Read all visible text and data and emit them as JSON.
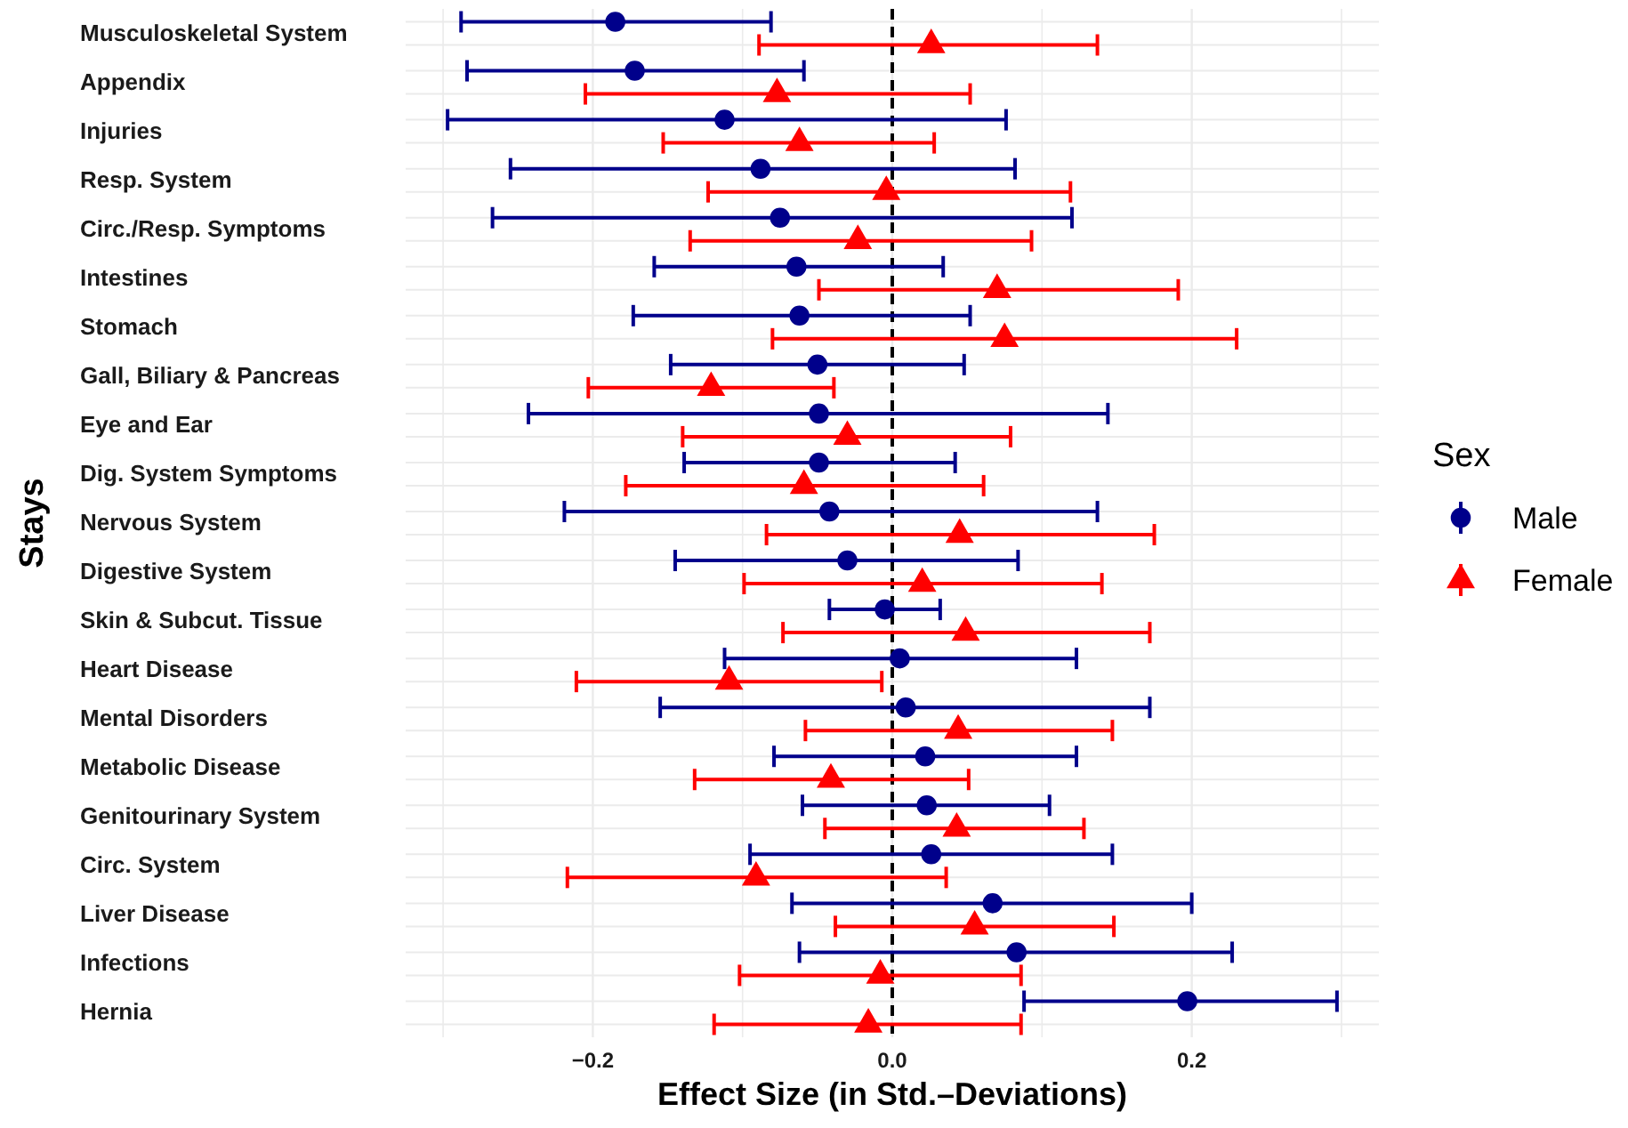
{
  "chart_data": {
    "type": "scatter",
    "orientation": "horizontal",
    "xlabel": "Effect Size (in Std.–Deviations)",
    "ylabel": "Stays",
    "legend_title": "Sex",
    "legend": "right",
    "grid": true,
    "categories": [
      "Musculoskeletal System",
      "Appendix",
      "Injuries",
      "Resp. System",
      "Circ./Resp. Symptoms",
      "Intestines",
      "Stomach",
      "Gall, Biliary & Pancreas",
      "Eye and Ear",
      "Dig. System Symptoms",
      "Nervous System",
      "Digestive System",
      "Skin & Subcut. Tissue",
      "Heart Disease",
      "Mental Disorders",
      "Metabolic Disease",
      "Genitourinary System",
      "Circ. System",
      "Liver Disease",
      "Infections",
      "Hernia"
    ],
    "xlim": [
      -0.325,
      0.325
    ],
    "xticks": [
      {
        "value": -0.3,
        "label": null
      },
      {
        "value": -0.2,
        "label": "−0.2"
      },
      {
        "value": -0.1,
        "label": null
      },
      {
        "value": 0,
        "label": "0.0"
      },
      {
        "value": 0.1,
        "label": null
      },
      {
        "value": 0.2,
        "label": "0.2"
      },
      {
        "value": 0.3,
        "label": null
      }
    ],
    "ref_lines": [
      {
        "axis": "x",
        "value": 0,
        "color": "#000000",
        "line_style": "dashed"
      }
    ],
    "series": [
      {
        "name": "Male",
        "color": "#00008b",
        "marker": "circle",
        "values": [
          -0.185,
          -0.172,
          -0.112,
          -0.088,
          -0.075,
          -0.064,
          -0.062,
          -0.05,
          -0.049,
          -0.049,
          -0.042,
          -0.03,
          -0.005,
          0.005,
          0.009,
          0.022,
          0.023,
          0.026,
          0.067,
          0.083,
          0.197
        ],
        "errors": [
          [
            -0.288,
            -0.081
          ],
          [
            -0.284,
            -0.059
          ],
          [
            -0.297,
            0.076
          ],
          [
            -0.255,
            0.082
          ],
          [
            -0.267,
            0.12
          ],
          [
            -0.159,
            0.034
          ],
          [
            -0.173,
            0.052
          ],
          [
            -0.148,
            0.048
          ],
          [
            -0.243,
            0.144
          ],
          [
            -0.139,
            0.042
          ],
          [
            -0.219,
            0.137
          ],
          [
            -0.145,
            0.084
          ],
          [
            -0.042,
            0.032
          ],
          [
            -0.112,
            0.123
          ],
          [
            -0.155,
            0.172
          ],
          [
            -0.079,
            0.123
          ],
          [
            -0.06,
            0.105
          ],
          [
            -0.095,
            0.147
          ],
          [
            -0.067,
            0.2
          ],
          [
            -0.062,
            0.227
          ],
          [
            0.088,
            0.297
          ]
        ]
      },
      {
        "name": "Female",
        "color": "#ff0000",
        "marker": "triangle",
        "values": [
          0.026,
          -0.077,
          -0.062,
          -0.004,
          -0.023,
          0.07,
          0.075,
          -0.121,
          -0.03,
          -0.059,
          0.045,
          0.02,
          0.049,
          -0.109,
          0.044,
          -0.041,
          0.043,
          -0.091,
          0.055,
          -0.008,
          -0.016
        ],
        "errors": [
          [
            -0.089,
            0.137
          ],
          [
            -0.205,
            0.052
          ],
          [
            -0.153,
            0.028
          ],
          [
            -0.123,
            0.119
          ],
          [
            -0.135,
            0.093
          ],
          [
            -0.049,
            0.191
          ],
          [
            -0.08,
            0.23
          ],
          [
            -0.203,
            -0.039
          ],
          [
            -0.14,
            0.079
          ],
          [
            -0.178,
            0.061
          ],
          [
            -0.084,
            0.175
          ],
          [
            -0.099,
            0.14
          ],
          [
            -0.073,
            0.172
          ],
          [
            -0.211,
            -0.007
          ],
          [
            -0.058,
            0.147
          ],
          [
            -0.132,
            0.051
          ],
          [
            -0.045,
            0.128
          ],
          [
            -0.217,
            0.036
          ],
          [
            -0.038,
            0.148
          ],
          [
            -0.102,
            0.086
          ],
          [
            -0.119,
            0.086
          ]
        ]
      }
    ]
  }
}
